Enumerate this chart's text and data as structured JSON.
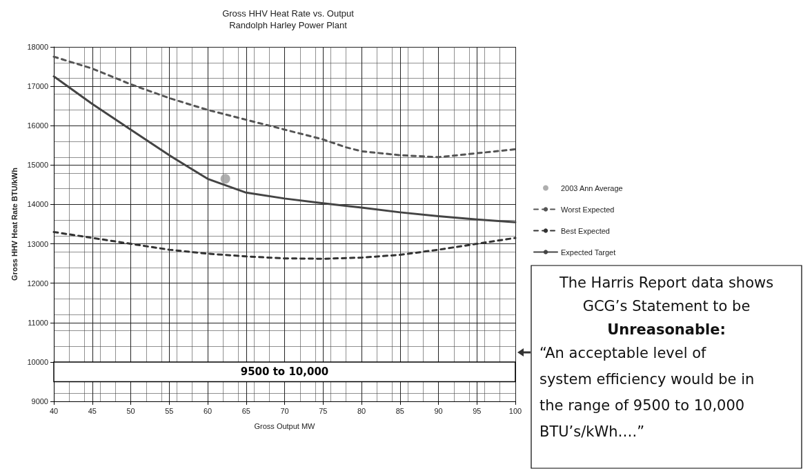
{
  "chart_data": {
    "type": "line",
    "title": "Gross HHV Heat Rate vs. Output",
    "subtitle": "Randolph Harley Power Plant",
    "xlabel": "Gross Output MW",
    "ylabel": "Gross HHV Heat Rate BTU/kWh",
    "xlim": [
      40,
      100
    ],
    "xticks": [
      40,
      45,
      50,
      55,
      60,
      65,
      70,
      75,
      80,
      85,
      90,
      95,
      100
    ],
    "ylim": [
      9000,
      18000
    ],
    "yticks": [
      9000,
      10000,
      11000,
      12000,
      13000,
      14000,
      15000,
      16000,
      17000,
      18000
    ],
    "grid": true,
    "legend": "right",
    "series": [
      {
        "name": "2003 Ann Average",
        "type": "scatter",
        "marker": "circle",
        "color": "#9a9a9a",
        "x": [
          62.3
        ],
        "values": [
          14650
        ]
      },
      {
        "name": "Worst Expected",
        "line_style": "dashed",
        "marker": "none",
        "color": "#555555",
        "x": [
          40,
          45,
          50,
          55,
          60,
          65,
          70,
          75,
          78,
          80,
          85,
          90,
          95,
          100
        ],
        "values": [
          17750,
          17450,
          17050,
          16700,
          16400,
          16150,
          15900,
          15650,
          15450,
          15350,
          15250,
          15200,
          15300,
          15400
        ]
      },
      {
        "name": "Best Expected",
        "line_style": "dashed",
        "marker": "none",
        "color": "#333333",
        "x": [
          40,
          45,
          50,
          55,
          60,
          65,
          70,
          75,
          80,
          85,
          90,
          95,
          100
        ],
        "values": [
          13300,
          13150,
          13000,
          12850,
          12750,
          12680,
          12630,
          12620,
          12650,
          12720,
          12850,
          13000,
          13150
        ]
      },
      {
        "name": "Expected Target",
        "line_style": "solid",
        "marker": "none",
        "color": "#444444",
        "x": [
          40,
          45,
          50,
          55,
          60,
          65,
          70,
          75,
          80,
          85,
          90,
          95,
          100
        ],
        "values": [
          17250,
          16550,
          15900,
          15250,
          14650,
          14300,
          14150,
          14030,
          13920,
          13800,
          13700,
          13620,
          13550
        ]
      }
    ],
    "bands": [
      {
        "axis": "y",
        "from": 9500,
        "to": 10000,
        "label": "9500 to 10,000",
        "color": "#ffffff"
      }
    ],
    "annotations": [
      "The Harris Report data shows\nGCG’s Statement to be",
      "Unreasonable:",
      "“An acceptable level of\nsystem efficiency would be in\nthe range of 9500 to 10,000\nBTU’s/kWh….”"
    ]
  }
}
